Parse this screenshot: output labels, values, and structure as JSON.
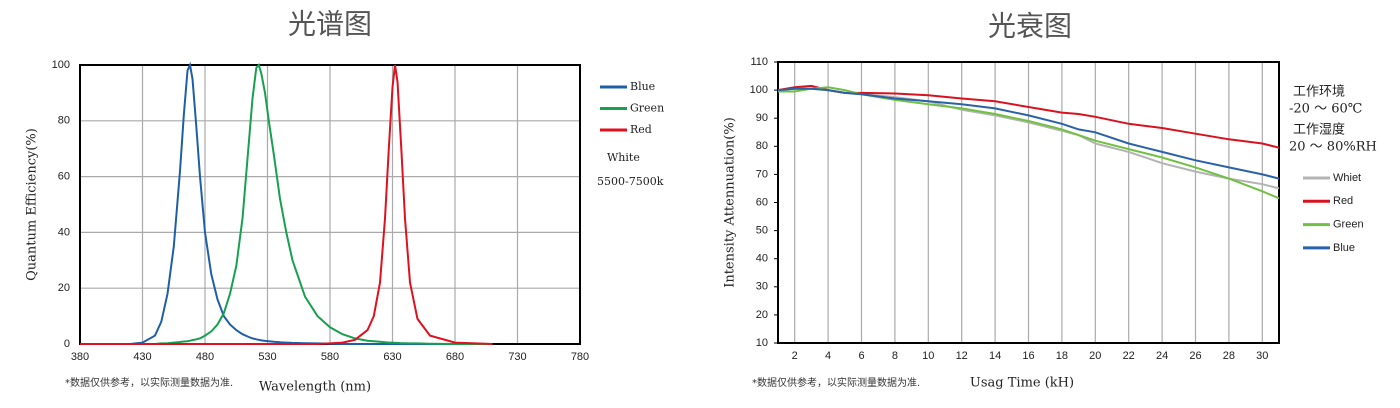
{
  "chart_data": [
    {
      "type": "line",
      "title": "光谱图",
      "x_label": "Wavelength  (nm)",
      "y_label": "Quantum  Efficiency(%)",
      "footnote": "*数据仅供参考，以实际测量数据为准.",
      "annotations": [
        "White",
        "5500-7500k"
      ],
      "grid": "both",
      "legend": "right",
      "xlim": [
        380,
        780
      ],
      "xticks": [
        380,
        430,
        480,
        530,
        580,
        630,
        680,
        730,
        780
      ],
      "ylim": [
        0,
        100
      ],
      "yticks": [
        0,
        20,
        40,
        60,
        80,
        100
      ],
      "x": [
        380,
        400,
        420,
        430,
        440,
        445,
        450,
        455,
        460,
        463,
        466,
        468,
        470,
        473,
        476,
        480,
        485,
        490,
        495,
        500,
        505,
        510,
        515,
        518,
        521,
        523,
        525,
        528,
        531,
        535,
        540,
        545,
        550,
        560,
        570,
        580,
        590,
        600,
        610,
        615,
        620,
        624,
        627,
        630,
        632,
        634,
        637,
        640,
        644,
        650,
        660,
        680,
        710
      ],
      "series": [
        {
          "name": "Blue",
          "color": "#1f5fa8",
          "values": [
            0,
            0,
            0,
            0.5,
            3,
            8,
            18,
            35,
            62,
            82,
            98,
            100,
            95,
            78,
            60,
            40,
            25,
            16,
            10,
            7,
            5,
            3.5,
            2.5,
            2,
            1.7,
            1.5,
            1.3,
            1.1,
            1,
            0.8,
            0.6,
            0.5,
            0.4,
            0.3,
            0.2,
            0.1,
            0,
            0,
            0,
            0,
            0,
            0,
            0,
            0,
            0,
            0,
            0,
            0,
            0,
            0,
            0,
            0,
            0
          ]
        },
        {
          "name": "Green",
          "color": "#17a050",
          "values": [
            0,
            0,
            0,
            0,
            0,
            0.2,
            0.3,
            0.5,
            0.7,
            0.9,
            1,
            1.2,
            1.4,
            1.7,
            2,
            3,
            4.5,
            7,
            11,
            18,
            28,
            45,
            72,
            88,
            99,
            100,
            97,
            90,
            80,
            68,
            52,
            40,
            30,
            17,
            10,
            6,
            3.5,
            2,
            1.2,
            1,
            0.8,
            0.6,
            0.5,
            0.5,
            0.4,
            0.4,
            0.3,
            0.3,
            0.2,
            0.2,
            0.1,
            0,
            0
          ]
        },
        {
          "name": "Red",
          "color": "#e0101e",
          "values": [
            0,
            0,
            0,
            0,
            0,
            0,
            0,
            0,
            0,
            0,
            0,
            0,
            0,
            0,
            0,
            0,
            0,
            0,
            0,
            0,
            0,
            0,
            0,
            0,
            0,
            0,
            0,
            0,
            0,
            0,
            0,
            0,
            0,
            0,
            0,
            0.2,
            0.5,
            1.5,
            5,
            10,
            22,
            45,
            70,
            92,
            100,
            94,
            70,
            45,
            22,
            9,
            3,
            0.5,
            0
          ]
        }
      ]
    },
    {
      "type": "line",
      "title": "光衰图",
      "x_label": "Usag Time (kH)",
      "y_label": "Intensity Attennuation(%)",
      "footnote": "*数据仅供参考，以实际测量数据为准.",
      "annotations": [
        "工作环境",
        "-20 ～ 60℃",
        "工作湿度",
        "20 ～ 80%RH"
      ],
      "grid": "x",
      "legend": "right",
      "xlim": [
        1,
        31
      ],
      "xticks": [
        2,
        4,
        6,
        8,
        10,
        12,
        14,
        16,
        18,
        20,
        22,
        24,
        26,
        28,
        30
      ],
      "ylim": [
        10,
        110
      ],
      "yticks": [
        10,
        20,
        30,
        40,
        50,
        60,
        70,
        80,
        90,
        100,
        110
      ],
      "x": [
        1,
        2,
        3,
        4,
        5,
        6,
        8,
        10,
        12,
        14,
        16,
        18,
        19,
        20,
        22,
        24,
        26,
        28,
        30,
        31
      ],
      "series": [
        {
          "name": "Whiet",
          "color": "#b3b3b3",
          "values": [
            100,
            100.5,
            100.5,
            100,
            99,
            98.5,
            97.5,
            96,
            93,
            91,
            88.5,
            85.5,
            84,
            81,
            78,
            74,
            71,
            68.5,
            66.5,
            65
          ]
        },
        {
          "name": "Red",
          "color": "#d9121f",
          "values": [
            100,
            101,
            101.5,
            100,
            99,
            99,
            98.8,
            98.2,
            97,
            96,
            94,
            92,
            91.5,
            90.5,
            88,
            86.5,
            84.5,
            82.5,
            81,
            79.5
          ]
        },
        {
          "name": "Green",
          "color": "#72c043",
          "values": [
            99.5,
            99.5,
            100.5,
            101,
            100,
            98.5,
            96.5,
            95,
            93.5,
            91.5,
            89,
            86,
            84,
            82,
            79,
            76,
            72.5,
            68.5,
            64,
            61.5
          ]
        },
        {
          "name": "Blue",
          "color": "#2a62a8",
          "values": [
            100,
            100.5,
            100.5,
            100,
            99,
            98.5,
            97,
            96,
            95,
            93.5,
            91,
            88,
            86,
            85,
            81,
            78,
            75,
            72.5,
            70,
            68.5
          ]
        }
      ]
    }
  ]
}
